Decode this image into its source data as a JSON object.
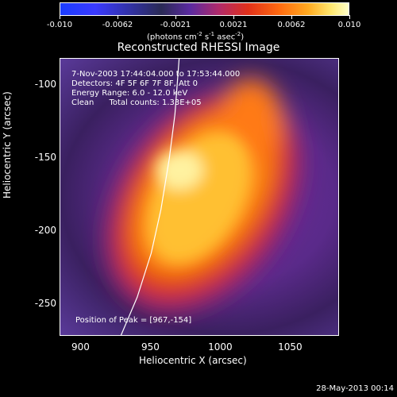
{
  "chart_data": {
    "type": "heatmap",
    "title": "Reconstructed RHESSI Image",
    "xlabel": "Heliocentric X (arcsec)",
    "ylabel": "Heliocentric Y (arcsec)",
    "xlim": [
      885,
      1085
    ],
    "ylim": [
      -272,
      -82
    ],
    "x_ticks": [
      900,
      950,
      1000,
      1050
    ],
    "y_ticks": [
      -100,
      -150,
      -200,
      -250
    ],
    "colorbar": {
      "ticks": [
        "-0.010",
        "-0.0062",
        "-0.0021",
        "0.0021",
        "0.0062",
        "0.010"
      ],
      "label": "(photons cm",
      "label_sup1": "-2",
      "label_mid": " s",
      "label_sup2": "-1",
      "label_mid2": " asec",
      "label_sup3": "-2",
      "label_end": ")",
      "range": [
        -0.01,
        0.01
      ]
    },
    "annotations": {
      "time": "7-Nov-2003 17:44:04.000 to 17:53:44.000",
      "detectors": "Detectors: 4F 5F 6F 7F 8F, Att 0",
      "energy": "Energy Range: 6.0 - 12.0 keV",
      "clean": "Clean      Total counts: 1.33E+05",
      "peak": "Position of Peak = [967,-154]"
    },
    "peak": [
      967,
      -154
    ],
    "limb_curve": [
      [
        928,
        -272
      ],
      [
        940,
        -245
      ],
      [
        950,
        -215
      ],
      [
        957,
        -185
      ],
      [
        963,
        -150
      ],
      [
        967,
        -120
      ],
      [
        970,
        -82
      ]
    ]
  },
  "footer": "28-May-2013 00:14"
}
